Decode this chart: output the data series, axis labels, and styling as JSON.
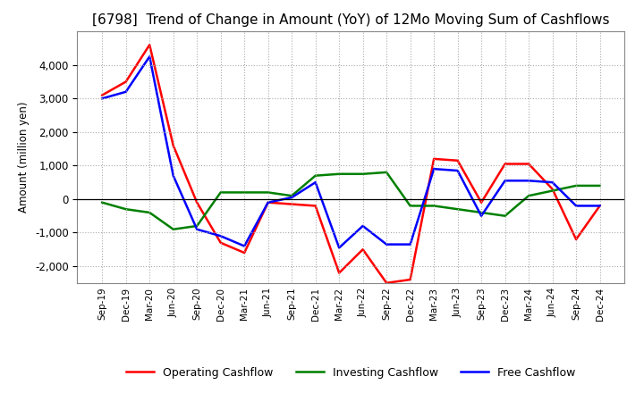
{
  "title": "[6798]  Trend of Change in Amount (YoY) of 12Mo Moving Sum of Cashflows",
  "ylabel": "Amount (million yen)",
  "x_labels": [
    "Sep-19",
    "Dec-19",
    "Mar-20",
    "Jun-20",
    "Sep-20",
    "Dec-20",
    "Mar-21",
    "Jun-21",
    "Sep-21",
    "Dec-21",
    "Mar-22",
    "Jun-22",
    "Sep-22",
    "Dec-22",
    "Mar-23",
    "Jun-23",
    "Sep-23",
    "Dec-23",
    "Mar-24",
    "Jun-24",
    "Sep-24",
    "Dec-24"
  ],
  "operating_cashflow": [
    3100,
    3500,
    4600,
    1600,
    -100,
    -1300,
    -1600,
    -100,
    -150,
    -200,
    -2200,
    -1500,
    -2500,
    -2400,
    1200,
    1150,
    -100,
    1050,
    1050,
    300,
    -1200,
    -200
  ],
  "investing_cashflow": [
    -100,
    -300,
    -400,
    -900,
    -800,
    200,
    200,
    200,
    100,
    700,
    750,
    750,
    800,
    -200,
    -200,
    -300,
    -400,
    -500,
    100,
    250,
    400,
    400
  ],
  "free_cashflow": [
    3000,
    3200,
    4250,
    700,
    -900,
    -1100,
    -1400,
    -100,
    50,
    500,
    -1450,
    -800,
    -1350,
    -1350,
    900,
    850,
    -500,
    550,
    550,
    500,
    -200,
    -200
  ],
  "ylim": [
    -2500,
    5000
  ],
  "yticks": [
    -2000,
    -1000,
    0,
    1000,
    2000,
    3000,
    4000
  ],
  "operating_color": "#ff0000",
  "investing_color": "#008000",
  "free_color": "#0000ff",
  "background_color": "#ffffff",
  "grid_color": "#aaaaaa",
  "title_fontsize": 11,
  "legend_labels": [
    "Operating Cashflow",
    "Investing Cashflow",
    "Free Cashflow"
  ]
}
